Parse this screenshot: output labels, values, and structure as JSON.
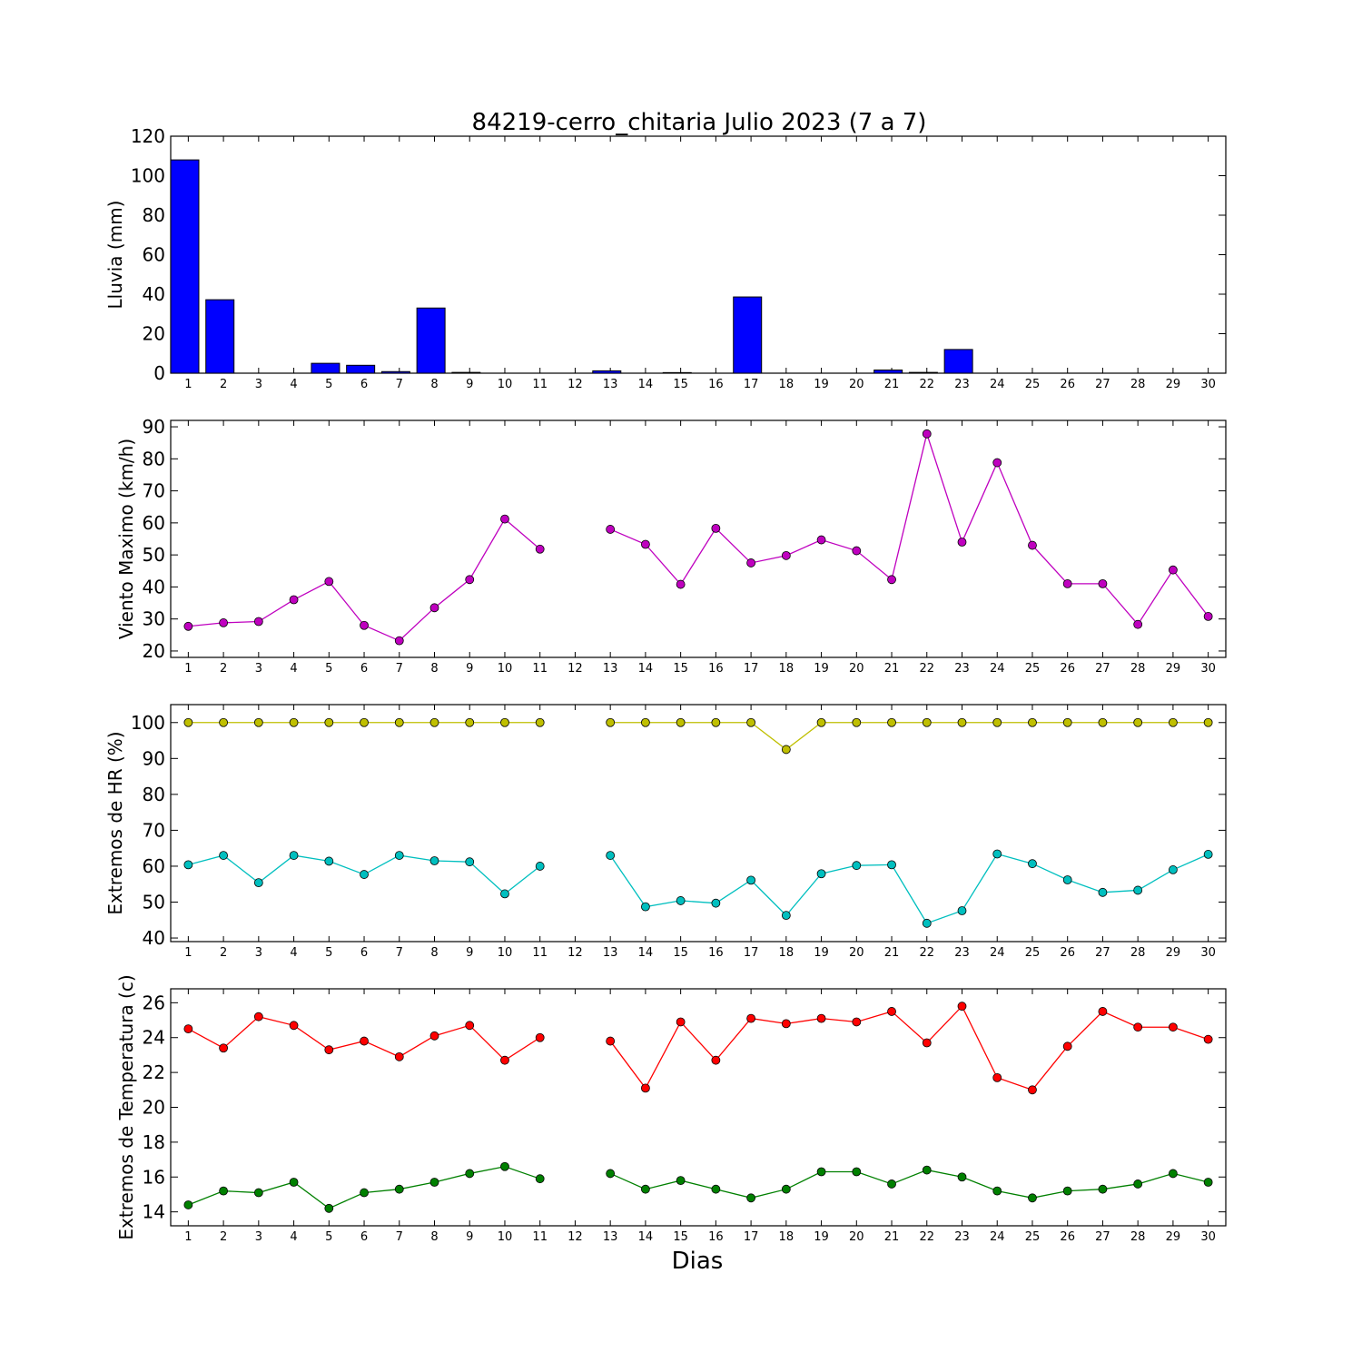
{
  "chart_data": {
    "title": "84219-cerro_chitaria Julio 2023  (7 a 7)",
    "xlabel": "Dias",
    "days": [
      1,
      2,
      3,
      4,
      5,
      6,
      7,
      8,
      9,
      10,
      11,
      12,
      13,
      14,
      15,
      16,
      17,
      18,
      19,
      20,
      21,
      22,
      23,
      24,
      25,
      26,
      27,
      28,
      29,
      30
    ],
    "panels": [
      {
        "type": "bar",
        "ylabel": "Lluvia (mm)",
        "ylim": [
          0,
          120
        ],
        "yticks": [
          0,
          20,
          40,
          60,
          80,
          100,
          120
        ],
        "series": [
          {
            "color": "#0000ff",
            "values": [
              108,
              37.2,
              0,
              0,
              5,
              4,
              0.8,
              33,
              0.4,
              0,
              0,
              null,
              1.2,
              0,
              0.3,
              0,
              38.6,
              0,
              0,
              0,
              1.6,
              0.4,
              12,
              0,
              0,
              0,
              0,
              0,
              0,
              0
            ]
          }
        ]
      },
      {
        "type": "line",
        "ylabel": "Viento Maximo (km/h)",
        "ylim": [
          18,
          92
        ],
        "yticks": [
          20,
          30,
          40,
          50,
          60,
          70,
          80,
          90
        ],
        "series": [
          {
            "color": "#bf00bf",
            "values": [
              27.7,
              28.8,
              29.2,
              36,
              41.7,
              28,
              23.2,
              33.5,
              42.3,
              61.2,
              51.8,
              null,
              58,
              53.3,
              40.8,
              58.3,
              47.5,
              49.8,
              54.7,
              51.3,
              42.3,
              87.8,
              54,
              78.8,
              53,
              41,
              41,
              28.3,
              45.3,
              30.8
            ]
          }
        ]
      },
      {
        "type": "line",
        "ylabel": "Extremos de HR (%)",
        "ylim": [
          39,
          105
        ],
        "yticks": [
          40,
          50,
          60,
          70,
          80,
          90,
          100
        ],
        "series": [
          {
            "color": "#bfbf00",
            "values": [
              100,
              100,
              100,
              100,
              100,
              100,
              100,
              100,
              100,
              100,
              100,
              null,
              100,
              100,
              100,
              100,
              100,
              92.5,
              100,
              100,
              100,
              100,
              100,
              100,
              100,
              100,
              100,
              100,
              100,
              100
            ]
          },
          {
            "color": "#00bfbf",
            "values": [
              60.4,
              63,
              55.4,
              63,
              61.4,
              57.7,
              63,
              61.5,
              61.2,
              52.3,
              60,
              null,
              63,
              48.7,
              50.4,
              49.7,
              56.1,
              46.3,
              57.9,
              60.2,
              60.4,
              44.1,
              47.6,
              63.4,
              60.7,
              56.2,
              52.7,
              53.3,
              59,
              63.3
            ]
          }
        ]
      },
      {
        "type": "line",
        "ylabel": "Extremos de Temperatura (c)",
        "ylim": [
          13.2,
          26.8
        ],
        "yticks": [
          14,
          16,
          18,
          20,
          22,
          24,
          26
        ],
        "series": [
          {
            "color": "#ff0000",
            "values": [
              24.5,
              23.4,
              25.2,
              24.7,
              23.3,
              23.8,
              22.9,
              24.1,
              24.7,
              22.7,
              24,
              null,
              23.8,
              21.1,
              24.9,
              22.7,
              25.1,
              24.8,
              25.1,
              24.9,
              25.5,
              23.7,
              25.8,
              21.7,
              21,
              23.5,
              25.5,
              24.6,
              24.6,
              23.9
            ]
          },
          {
            "color": "#008000",
            "values": [
              14.4,
              15.2,
              15.1,
              15.7,
              14.2,
              15.1,
              15.3,
              15.7,
              16.2,
              16.6,
              15.9,
              null,
              16.2,
              15.3,
              15.8,
              15.3,
              14.8,
              15.3,
              16.3,
              16.3,
              15.6,
              16.4,
              16,
              15.2,
              14.8,
              15.2,
              15.3,
              15.6,
              16.2,
              15.7
            ]
          }
        ]
      }
    ]
  }
}
